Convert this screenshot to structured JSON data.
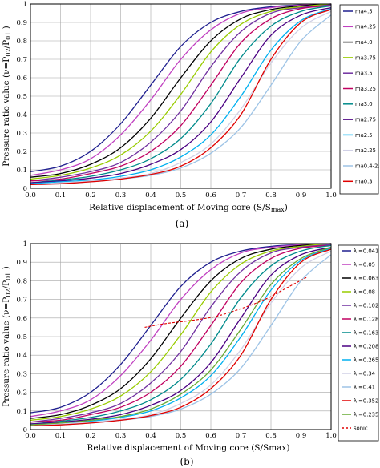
{
  "chart_data": [
    {
      "type": "line",
      "panel_label": "(a)",
      "xlabel": "Relative displacement of Moving core (S/S",
      "xlabel_sub": "max",
      "xlabel_tail": ")",
      "ylabel": "Pressure ratio value (ν=P",
      "ylabel_sub1": "02",
      "ylabel_mid": "/P",
      "ylabel_sub2": "01",
      "ylabel_tail": " )",
      "xlim": [
        0,
        1
      ],
      "ylim": [
        0,
        1
      ],
      "xticks": [
        "0.0",
        "0.1",
        "0.2",
        "0.3",
        "0.4",
        "0.5",
        "0.6",
        "0.7",
        "0.8",
        "0.9",
        "1.0"
      ],
      "yticks": [
        "0",
        "0.1",
        "0.2",
        "0.3",
        "0.4",
        "0.5",
        "0.6",
        "0.7",
        "0.8",
        "0.9",
        "1"
      ],
      "grid": true,
      "legend_position": "right",
      "series": [
        {
          "name": "ma4.5",
          "color": "#1f1f8f",
          "x": [
            0,
            0.1,
            0.2,
            0.3,
            0.4,
            0.5,
            0.6,
            0.7,
            0.8,
            0.9,
            1.0
          ],
          "y": [
            0.09,
            0.12,
            0.2,
            0.35,
            0.56,
            0.77,
            0.9,
            0.96,
            0.985,
            0.995,
            1.0
          ]
        },
        {
          "name": "ma4.25",
          "color": "#c040c0",
          "x": [
            0,
            0.1,
            0.2,
            0.3,
            0.4,
            0.5,
            0.6,
            0.7,
            0.8,
            0.9,
            1.0
          ],
          "y": [
            0.07,
            0.1,
            0.16,
            0.29,
            0.48,
            0.7,
            0.86,
            0.95,
            0.98,
            0.994,
            1.0
          ]
        },
        {
          "name": "ma4.0",
          "color": "#000000",
          "x": [
            0,
            0.1,
            0.2,
            0.3,
            0.4,
            0.5,
            0.6,
            0.7,
            0.8,
            0.9,
            1.0
          ],
          "y": [
            0.06,
            0.08,
            0.13,
            0.22,
            0.38,
            0.6,
            0.8,
            0.92,
            0.97,
            0.99,
            1.0
          ]
        },
        {
          "name": "ma3.75",
          "color": "#99cc00",
          "x": [
            0,
            0.1,
            0.2,
            0.3,
            0.4,
            0.5,
            0.6,
            0.7,
            0.8,
            0.9,
            1.0
          ],
          "y": [
            0.05,
            0.07,
            0.11,
            0.18,
            0.31,
            0.51,
            0.74,
            0.89,
            0.96,
            0.985,
            1.0
          ]
        },
        {
          "name": "ma3.5",
          "color": "#7030a0",
          "x": [
            0,
            0.1,
            0.2,
            0.3,
            0.4,
            0.5,
            0.6,
            0.7,
            0.8,
            0.9,
            1.0
          ],
          "y": [
            0.04,
            0.06,
            0.09,
            0.14,
            0.25,
            0.42,
            0.66,
            0.85,
            0.95,
            0.98,
            0.995
          ]
        },
        {
          "name": "ma3.25",
          "color": "#c00060",
          "x": [
            0,
            0.1,
            0.2,
            0.3,
            0.4,
            0.5,
            0.6,
            0.7,
            0.8,
            0.9,
            1.0
          ],
          "y": [
            0.04,
            0.05,
            0.08,
            0.12,
            0.2,
            0.34,
            0.56,
            0.79,
            0.92,
            0.975,
            0.99
          ]
        },
        {
          "name": "ma3.0",
          "color": "#008b8b",
          "x": [
            0,
            0.1,
            0.2,
            0.3,
            0.4,
            0.5,
            0.6,
            0.7,
            0.8,
            0.9,
            1.0
          ],
          "y": [
            0.03,
            0.045,
            0.065,
            0.1,
            0.16,
            0.27,
            0.46,
            0.71,
            0.88,
            0.96,
            0.99
          ]
        },
        {
          "name": "ma2.75",
          "color": "#4b0082",
          "x": [
            0,
            0.1,
            0.2,
            0.3,
            0.4,
            0.5,
            0.6,
            0.7,
            0.8,
            0.9,
            1.0
          ],
          "y": [
            0.03,
            0.04,
            0.055,
            0.08,
            0.13,
            0.21,
            0.36,
            0.6,
            0.83,
            0.94,
            0.98
          ]
        },
        {
          "name": "ma2.5",
          "color": "#00b0f0",
          "x": [
            0,
            0.1,
            0.2,
            0.3,
            0.4,
            0.5,
            0.6,
            0.7,
            0.8,
            0.9,
            1.0
          ],
          "y": [
            0.025,
            0.035,
            0.045,
            0.065,
            0.1,
            0.17,
            0.29,
            0.5,
            0.75,
            0.91,
            0.975
          ]
        },
        {
          "name": "ma2.25",
          "color": "#d0d0e6",
          "x": [
            0,
            0.1,
            0.2,
            0.3,
            0.4,
            0.5,
            0.6,
            0.7,
            0.8,
            0.9,
            1.0
          ],
          "y": [
            0.02,
            0.03,
            0.04,
            0.055,
            0.08,
            0.14,
            0.24,
            0.43,
            0.68,
            0.87,
            0.96
          ]
        },
        {
          "name": "ma0.4-2.0",
          "color": "#9dc3e6",
          "x": [
            0,
            0.1,
            0.2,
            0.3,
            0.4,
            0.5,
            0.6,
            0.7,
            0.8,
            0.9,
            1.0
          ],
          "y": [
            0.02,
            0.025,
            0.035,
            0.05,
            0.07,
            0.11,
            0.19,
            0.33,
            0.56,
            0.8,
            0.94
          ]
        },
        {
          "name": "ma0.3",
          "color": "#e00000",
          "x": [
            0,
            0.1,
            0.2,
            0.3,
            0.4,
            0.5,
            0.6,
            0.7,
            0.8,
            0.9,
            1.0
          ],
          "y": [
            0.02,
            0.025,
            0.035,
            0.05,
            0.075,
            0.12,
            0.22,
            0.4,
            0.7,
            0.9,
            0.97
          ]
        }
      ]
    },
    {
      "type": "line",
      "panel_label": "(b)",
      "xlabel": "Relative displacement of Moving core (S/Smax)",
      "ylabel": "Pressure ratio value (ν=P",
      "ylabel_sub1": "02",
      "ylabel_mid": "/P",
      "ylabel_sub2": "01",
      "ylabel_tail": " )",
      "xlim": [
        0,
        1
      ],
      "ylim": [
        0,
        1
      ],
      "xticks": [
        "0.0",
        "0.1",
        "0.2",
        "0.3",
        "0.4",
        "0.5",
        "0.6",
        "0.7",
        "0.8",
        "0.9",
        "1.0"
      ],
      "yticks": [
        "0",
        "0.1",
        "0.2",
        "0.3",
        "0.4",
        "0.5",
        "0.6",
        "0.7",
        "0.8",
        "0.9",
        "1"
      ],
      "grid": true,
      "legend_position": "right",
      "series": [
        {
          "name": "λ =0.041",
          "color": "#1f1f8f",
          "x": [
            0,
            0.1,
            0.2,
            0.3,
            0.4,
            0.5,
            0.6,
            0.7,
            0.8,
            0.9,
            1.0
          ],
          "y": [
            0.09,
            0.12,
            0.2,
            0.35,
            0.56,
            0.77,
            0.9,
            0.96,
            0.985,
            0.995,
            1.0
          ]
        },
        {
          "name": "λ =0.05",
          "color": "#c040c0",
          "x": [
            0,
            0.1,
            0.2,
            0.3,
            0.4,
            0.5,
            0.6,
            0.7,
            0.8,
            0.9,
            1.0
          ],
          "y": [
            0.07,
            0.1,
            0.16,
            0.29,
            0.48,
            0.7,
            0.86,
            0.95,
            0.98,
            0.994,
            1.0
          ]
        },
        {
          "name": "λ =0.063",
          "color": "#000000",
          "x": [
            0,
            0.1,
            0.2,
            0.3,
            0.4,
            0.5,
            0.6,
            0.7,
            0.8,
            0.9,
            1.0
          ],
          "y": [
            0.06,
            0.08,
            0.13,
            0.22,
            0.38,
            0.6,
            0.8,
            0.92,
            0.97,
            0.99,
            1.0
          ]
        },
        {
          "name": "λ =0.08",
          "color": "#99cc00",
          "x": [
            0,
            0.1,
            0.2,
            0.3,
            0.4,
            0.5,
            0.6,
            0.7,
            0.8,
            0.9,
            1.0
          ],
          "y": [
            0.05,
            0.07,
            0.11,
            0.18,
            0.31,
            0.51,
            0.74,
            0.89,
            0.96,
            0.985,
            1.0
          ]
        },
        {
          "name": "λ =0.102",
          "color": "#7030a0",
          "x": [
            0,
            0.1,
            0.2,
            0.3,
            0.4,
            0.5,
            0.6,
            0.7,
            0.8,
            0.9,
            1.0
          ],
          "y": [
            0.04,
            0.06,
            0.09,
            0.14,
            0.25,
            0.42,
            0.66,
            0.85,
            0.95,
            0.98,
            0.995
          ]
        },
        {
          "name": "λ =0.128",
          "color": "#c00060",
          "x": [
            0,
            0.1,
            0.2,
            0.3,
            0.4,
            0.5,
            0.6,
            0.7,
            0.8,
            0.9,
            1.0
          ],
          "y": [
            0.04,
            0.05,
            0.08,
            0.12,
            0.2,
            0.34,
            0.56,
            0.79,
            0.92,
            0.975,
            0.99
          ]
        },
        {
          "name": "λ =0.163",
          "color": "#008b8b",
          "x": [
            0,
            0.1,
            0.2,
            0.3,
            0.4,
            0.5,
            0.6,
            0.7,
            0.8,
            0.9,
            1.0
          ],
          "y": [
            0.03,
            0.045,
            0.065,
            0.1,
            0.16,
            0.27,
            0.46,
            0.71,
            0.88,
            0.96,
            0.99
          ]
        },
        {
          "name": "λ =0.208",
          "color": "#4b0082",
          "x": [
            0,
            0.1,
            0.2,
            0.3,
            0.4,
            0.5,
            0.6,
            0.7,
            0.8,
            0.9,
            1.0
          ],
          "y": [
            0.03,
            0.04,
            0.055,
            0.08,
            0.13,
            0.21,
            0.36,
            0.6,
            0.83,
            0.94,
            0.98
          ]
        },
        {
          "name": "λ =0.265",
          "color": "#00b0f0",
          "x": [
            0,
            0.1,
            0.2,
            0.3,
            0.4,
            0.5,
            0.6,
            0.7,
            0.8,
            0.9,
            1.0
          ],
          "y": [
            0.025,
            0.035,
            0.045,
            0.065,
            0.1,
            0.17,
            0.29,
            0.5,
            0.75,
            0.91,
            0.975
          ]
        },
        {
          "name": "λ =0.34",
          "color": "#d0d0e6",
          "x": [
            0,
            0.1,
            0.2,
            0.3,
            0.4,
            0.5,
            0.6,
            0.7,
            0.8,
            0.9,
            1.0
          ],
          "y": [
            0.02,
            0.03,
            0.04,
            0.055,
            0.08,
            0.14,
            0.24,
            0.43,
            0.68,
            0.87,
            0.96
          ]
        },
        {
          "name": "λ =0.41",
          "color": "#9dc3e6",
          "x": [
            0,
            0.1,
            0.2,
            0.3,
            0.4,
            0.5,
            0.6,
            0.7,
            0.8,
            0.9,
            1.0
          ],
          "y": [
            0.02,
            0.025,
            0.035,
            0.05,
            0.07,
            0.11,
            0.19,
            0.33,
            0.56,
            0.8,
            0.94
          ]
        },
        {
          "name": "λ =0.352",
          "color": "#e00000",
          "x": [
            0,
            0.1,
            0.2,
            0.3,
            0.4,
            0.5,
            0.6,
            0.7,
            0.8,
            0.9,
            1.0
          ],
          "y": [
            0.02,
            0.025,
            0.035,
            0.05,
            0.075,
            0.12,
            0.22,
            0.4,
            0.7,
            0.9,
            0.97
          ]
        },
        {
          "name": "λ =0.235",
          "color": "#66aa33",
          "x": [
            0,
            0.1,
            0.2,
            0.3,
            0.4,
            0.5,
            0.6,
            0.7,
            0.8,
            0.9,
            1.0
          ],
          "y": [
            0.025,
            0.035,
            0.05,
            0.07,
            0.11,
            0.19,
            0.32,
            0.54,
            0.78,
            0.92,
            0.98
          ]
        },
        {
          "name": "sonic",
          "color": "#e00000",
          "dashed": true,
          "x": [
            0.38,
            0.45,
            0.55,
            0.62,
            0.7,
            0.78,
            0.85,
            0.92
          ],
          "y": [
            0.55,
            0.57,
            0.59,
            0.61,
            0.65,
            0.7,
            0.76,
            0.82
          ]
        }
      ]
    }
  ]
}
